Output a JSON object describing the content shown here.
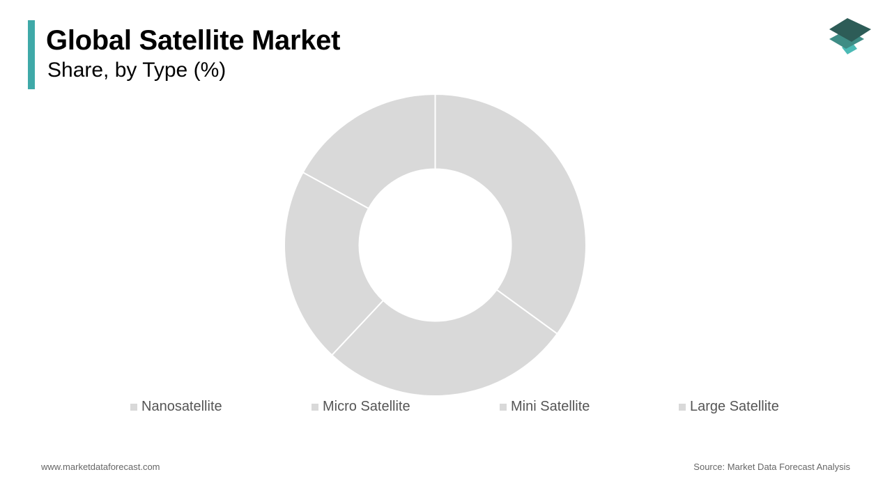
{
  "header": {
    "title": "Global Satellite Market",
    "subtitle": "Share, by Type (%)"
  },
  "colors": {
    "accent": "#3fa9a8",
    "slice": "#d9d9d9",
    "separator": "#ffffff",
    "logo_dark": "#2d5c57",
    "logo_mid": "#3e8c85",
    "logo_light": "#4bbab5"
  },
  "logo": {
    "icon": "stacked-layers-icon"
  },
  "chart_data": {
    "type": "pie",
    "donut": true,
    "categories": [
      "Nanosatellite",
      "Micro Satellite",
      "Mini Satellite",
      "Large Satellite"
    ],
    "values": [
      35,
      27,
      21,
      17
    ],
    "unit": "%",
    "legend_position": "bottom"
  },
  "footer": {
    "website": "www.marketdataforecast.com",
    "source": "Source: Market Data Forecast Analysis"
  }
}
